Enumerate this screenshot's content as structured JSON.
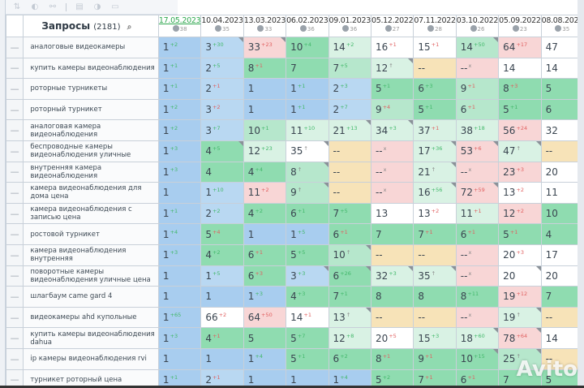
{
  "toolbar": {
    "icons": [
      "sort-icon",
      "toggle-icon",
      "link-icon",
      "divider",
      "calendar-icon",
      "clock-icon",
      "folder-icon"
    ],
    "glyphs": [
      "⇅",
      "◐",
      "⚯",
      "",
      "▤",
      "◑",
      "▭"
    ]
  },
  "header": {
    "title": "Запросы",
    "count": "(2181)",
    "search_icon": "⌕"
  },
  "dates": [
    {
      "date": "17.05.2023",
      "badge": "38",
      "active": true
    },
    {
      "date": "10.04.2023",
      "badge": "35"
    },
    {
      "date": "13.03.2023",
      "badge": "33"
    },
    {
      "date": "06.02.2023",
      "badge": "36"
    },
    {
      "date": "09.01.2023",
      "badge": "36"
    },
    {
      "date": "05.12.2022",
      "badge": "27"
    },
    {
      "date": "07.11.2022",
      "badge": "28"
    },
    {
      "date": "03.10.2022",
      "badge": "26"
    },
    {
      "date": "05.09.2022",
      "badge": "23"
    },
    {
      "date": "08.08.2022",
      "badge": "35"
    }
  ],
  "rows": [
    {
      "q": "аналоговые видеокамеры",
      "cells": [
        [
          "1",
          "+2",
          "up",
          "blue"
        ],
        [
          "3",
          "+30",
          "up",
          "blue2",
          1
        ],
        [
          "33",
          "+23",
          "dn",
          "pink",
          1
        ],
        [
          "10",
          "+4",
          "up",
          "green"
        ],
        [
          "14",
          "+2",
          "up",
          "green3"
        ],
        [
          "16",
          "+1",
          "dn",
          "white"
        ],
        [
          "15",
          "+1",
          "dn",
          "white"
        ],
        [
          "14",
          "+50",
          "up",
          "green2",
          1
        ],
        [
          "64",
          "+17",
          "dn",
          "pink"
        ],
        [
          "47",
          "",
          "",
          "white"
        ]
      ]
    },
    {
      "q": "купить камеры видеонаблюдения",
      "cells": [
        [
          "1",
          "+1",
          "up",
          "blue"
        ],
        [
          "2",
          "+5",
          "up",
          "blue2"
        ],
        [
          "8",
          "+1",
          "dn",
          "green"
        ],
        [
          "7",
          "",
          "",
          "green"
        ],
        [
          "7",
          "+5",
          "up",
          "green2"
        ],
        [
          "12",
          "↑",
          "nu",
          "green3",
          1
        ],
        [
          "--",
          "",
          "",
          "yellow"
        ],
        [
          "--",
          "x",
          "nu",
          "pink"
        ],
        [
          "14",
          "",
          "",
          "white"
        ],
        [
          "14",
          "",
          "",
          "white"
        ]
      ]
    },
    {
      "q": "роторные турникеты",
      "cells": [
        [
          "1",
          "+1",
          "up",
          "blue"
        ],
        [
          "2",
          "+1",
          "dn",
          "blue2"
        ],
        [
          "1",
          "",
          "",
          "blue"
        ],
        [
          "1",
          "+1",
          "up",
          "blue"
        ],
        [
          "2",
          "+3",
          "up",
          "blue2"
        ],
        [
          "5",
          "+1",
          "up",
          "green"
        ],
        [
          "6",
          "+3",
          "up",
          "green"
        ],
        [
          "9",
          "+1",
          "dn",
          "green2"
        ],
        [
          "8",
          "+3",
          "dn",
          "green"
        ],
        [
          "5",
          "",
          "",
          "green"
        ]
      ]
    },
    {
      "q": "роторный турникет",
      "cells": [
        [
          "1",
          "+2",
          "up",
          "blue"
        ],
        [
          "3",
          "+2",
          "dn",
          "blue2"
        ],
        [
          "1",
          "",
          "",
          "blue"
        ],
        [
          "1",
          "+1",
          "up",
          "blue"
        ],
        [
          "2",
          "+7",
          "up",
          "blue2"
        ],
        [
          "9",
          "+4",
          "dn",
          "green2"
        ],
        [
          "5",
          "+1",
          "up",
          "green"
        ],
        [
          "6",
          "+1",
          "dn",
          "green2"
        ],
        [
          "5",
          "+1",
          "up",
          "green"
        ],
        [
          "6",
          "",
          "",
          "green"
        ]
      ]
    },
    {
      "q": "аналоговая камера видеонаблюдения",
      "cells": [
        [
          "1",
          "+2",
          "up",
          "blue"
        ],
        [
          "3",
          "+7",
          "up",
          "blue2"
        ],
        [
          "10",
          "+1",
          "up",
          "green2"
        ],
        [
          "11",
          "+10",
          "up",
          "green3"
        ],
        [
          "21",
          "+13",
          "up",
          "green3",
          1
        ],
        [
          "34",
          "+3",
          "up",
          "green3",
          1
        ],
        [
          "37",
          "+1",
          "dn",
          "green3"
        ],
        [
          "38",
          "+18",
          "up",
          "green3"
        ],
        [
          "56",
          "+24",
          "dn",
          "pink"
        ],
        [
          "32",
          "",
          "",
          "white"
        ]
      ]
    },
    {
      "q": "беспроводные камеры видеонаблюдения уличные",
      "cells": [
        [
          "1",
          "+3",
          "up",
          "blue"
        ],
        [
          "4",
          "+5",
          "up",
          "green",
          1
        ],
        [
          "12",
          "+23",
          "up",
          "green3"
        ],
        [
          "35",
          "↑",
          "nu",
          "white",
          1
        ],
        [
          "--",
          "",
          "",
          "yellow"
        ],
        [
          "--",
          "x",
          "nu",
          "pink"
        ],
        [
          "17",
          "+36",
          "up",
          "green3",
          1
        ],
        [
          "53",
          "+6",
          "dn",
          "pink",
          1
        ],
        [
          "47",
          "↑",
          "nu",
          "green3",
          1
        ],
        [
          "--",
          "",
          "",
          "yellow"
        ]
      ]
    },
    {
      "q": "внутренняя камера видеонаблюдения",
      "cells": [
        [
          "1",
          "+3",
          "up",
          "blue"
        ],
        [
          "4",
          "",
          "",
          "green"
        ],
        [
          "4",
          "+4",
          "up",
          "green"
        ],
        [
          "8",
          "↑",
          "nu",
          "green2",
          1
        ],
        [
          "--",
          "",
          "",
          "yellow"
        ],
        [
          "--",
          "x",
          "nu",
          "pink"
        ],
        [
          "21",
          "↑",
          "nu",
          "green3",
          1
        ],
        [
          "--",
          "x",
          "nu",
          "pink"
        ],
        [
          "23",
          "+3",
          "dn",
          "pink"
        ],
        [
          "20",
          "",
          "",
          "white"
        ]
      ]
    },
    {
      "q": "камера видеонаблюдения для дома цена",
      "cells": [
        [
          "1",
          "",
          "",
          "blue"
        ],
        [
          "1",
          "+10",
          "up",
          "blue2"
        ],
        [
          "11",
          "+2",
          "dn",
          "pink"
        ],
        [
          "9",
          "↑",
          "nu",
          "green2",
          1
        ],
        [
          "--",
          "",
          "",
          "yellow"
        ],
        [
          "--",
          "x",
          "nu",
          "pink"
        ],
        [
          "16",
          "+56",
          "up",
          "green3",
          1
        ],
        [
          "72",
          "+59",
          "dn",
          "pink",
          1
        ],
        [
          "13",
          "+2",
          "dn",
          "white"
        ],
        [
          "11",
          "",
          "",
          "white"
        ]
      ]
    },
    {
      "q": "камера видеонаблюдения с записью цена",
      "cells": [
        [
          "1",
          "+1",
          "up",
          "blue"
        ],
        [
          "2",
          "+2",
          "up",
          "blue2"
        ],
        [
          "4",
          "+2",
          "up",
          "green"
        ],
        [
          "6",
          "+1",
          "up",
          "green"
        ],
        [
          "7",
          "+5",
          "up",
          "green"
        ],
        [
          "13",
          "",
          "",
          "white"
        ],
        [
          "13",
          "+2",
          "dn",
          "white"
        ],
        [
          "11",
          "+1",
          "dn",
          "green3"
        ],
        [
          "12",
          "+2",
          "dn",
          "pink"
        ],
        [
          "10",
          "",
          "",
          "green"
        ]
      ]
    },
    {
      "q": "ростовой турникет",
      "cells": [
        [
          "1",
          "+4",
          "up",
          "blue"
        ],
        [
          "5",
          "+4",
          "dn",
          "green"
        ],
        [
          "1",
          "",
          "",
          "blue"
        ],
        [
          "1",
          "+5",
          "up",
          "blue"
        ],
        [
          "6",
          "+1",
          "dn",
          "green"
        ],
        [
          "7",
          "",
          "",
          "green"
        ],
        [
          "7",
          "+1",
          "dn",
          "green"
        ],
        [
          "6",
          "+1",
          "dn",
          "green"
        ],
        [
          "5",
          "+1",
          "dn",
          "green"
        ],
        [
          "4",
          "",
          "",
          "green"
        ]
      ]
    },
    {
      "q": "камера видеонаблюдения внутренняя",
      "cells": [
        [
          "1",
          "+3",
          "up",
          "blue"
        ],
        [
          "4",
          "+2",
          "up",
          "green"
        ],
        [
          "6",
          "+1",
          "dn",
          "green"
        ],
        [
          "5",
          "+5",
          "up",
          "green"
        ],
        [
          "10",
          "↑",
          "nu",
          "green2",
          1
        ],
        [
          "--",
          "",
          "",
          "yellow"
        ],
        [
          "--",
          "",
          "",
          "yellow"
        ],
        [
          "--",
          "x",
          "nu",
          "pink"
        ],
        [
          "20",
          "+3",
          "dn",
          "white"
        ],
        [
          "17",
          "",
          "",
          "white"
        ]
      ]
    },
    {
      "q": "поворотные камеры видеонаблюдения уличные цена",
      "cells": [
        [
          "1",
          "",
          "",
          "blue"
        ],
        [
          "1",
          "+5",
          "up",
          "blue2"
        ],
        [
          "6",
          "+3",
          "dn",
          "green"
        ],
        [
          "3",
          "+3",
          "up",
          "blue2",
          1
        ],
        [
          "6",
          "+26",
          "up",
          "green",
          1
        ],
        [
          "32",
          "+3",
          "up",
          "green3",
          1
        ],
        [
          "35",
          "↑",
          "nu",
          "green3",
          1
        ],
        [
          "--",
          "x",
          "nu",
          "pink"
        ],
        [
          "20",
          "",
          "",
          "white",
          1
        ],
        [
          "20",
          "",
          "",
          "white"
        ]
      ]
    },
    {
      "q": "шлагбаум came gard 4",
      "cells": [
        [
          "1",
          "",
          "",
          "blue"
        ],
        [
          "1",
          "",
          "",
          "blue"
        ],
        [
          "1",
          "+3",
          "up",
          "blue"
        ],
        [
          "4",
          "+3",
          "up",
          "green"
        ],
        [
          "7",
          "+1",
          "up",
          "green"
        ],
        [
          "8",
          "",
          "",
          "green"
        ],
        [
          "8",
          "",
          "",
          "green"
        ],
        [
          "8",
          "+11",
          "up",
          "green"
        ],
        [
          "19",
          "+12",
          "dn",
          "pink"
        ],
        [
          "7",
          "",
          "",
          "green"
        ]
      ]
    },
    {
      "q": "видеокамеры ahd купольные",
      "cells": [
        [
          "1",
          "+65",
          "up",
          "blue"
        ],
        [
          "66",
          "+2",
          "dn",
          "white"
        ],
        [
          "64",
          "+50",
          "dn",
          "pink"
        ],
        [
          "14",
          "+1",
          "dn",
          "white"
        ],
        [
          "13",
          "↑",
          "nu",
          "green3",
          1
        ],
        [
          "--",
          "",
          "",
          "yellow"
        ],
        [
          "--",
          "",
          "",
          "yellow"
        ],
        [
          "--",
          "x",
          "nu",
          "pink"
        ],
        [
          "19",
          "↑",
          "nu",
          "green3",
          1
        ],
        [
          "--",
          "",
          "",
          "yellow"
        ]
      ]
    },
    {
      "q": "купить камеры видеонаблюдения dahua",
      "cells": [
        [
          "1",
          "+3",
          "up",
          "blue"
        ],
        [
          "4",
          "+1",
          "dn",
          "green"
        ],
        [
          "5",
          "",
          "",
          "green"
        ],
        [
          "5",
          "+7",
          "up",
          "green"
        ],
        [
          "12",
          "+8",
          "up",
          "green3"
        ],
        [
          "20",
          "+5",
          "dn",
          "white"
        ],
        [
          "15",
          "+3",
          "up",
          "green3"
        ],
        [
          "18",
          "+60",
          "up",
          "green3",
          1
        ],
        [
          "78",
          "+64",
          "dn",
          "pink",
          1
        ],
        [
          "14",
          "",
          "",
          "white"
        ]
      ]
    },
    {
      "q": "ip камеры видеонаблюдения rvi",
      "cells": [
        [
          "1",
          "",
          "",
          "blue"
        ],
        [
          "1",
          "",
          "",
          "blue"
        ],
        [
          "1",
          "+4",
          "up",
          "blue"
        ],
        [
          "5",
          "+1",
          "up",
          "green"
        ],
        [
          "6",
          "+2",
          "up",
          "green"
        ],
        [
          "8",
          "+1",
          "dn",
          "green"
        ],
        [
          "9",
          "+1",
          "dn",
          "green"
        ],
        [
          "10",
          "+15",
          "up",
          "green",
          1
        ],
        [
          "25",
          "↑",
          "nu",
          "green2",
          1
        ],
        [
          "--",
          "",
          "",
          "yellow"
        ]
      ]
    },
    {
      "q": "турникет роторный цена",
      "cells": [
        [
          "1",
          "+1",
          "up",
          "blue"
        ],
        [
          "2",
          "+1",
          "dn",
          "blue2"
        ],
        [
          "1",
          "",
          "",
          "blue"
        ],
        [
          "1",
          "",
          "",
          "blue"
        ],
        [
          "1",
          "+4",
          "up",
          "blue"
        ],
        [
          "5",
          "+2",
          "up",
          "green"
        ],
        [
          "7",
          "+1",
          "dn",
          "green"
        ],
        [
          "6",
          "+1",
          "dn",
          "green"
        ],
        [
          "7",
          "",
          "",
          "green"
        ],
        [
          "5",
          "",
          "",
          "green"
        ]
      ]
    }
  ],
  "watermark": "Avito"
}
